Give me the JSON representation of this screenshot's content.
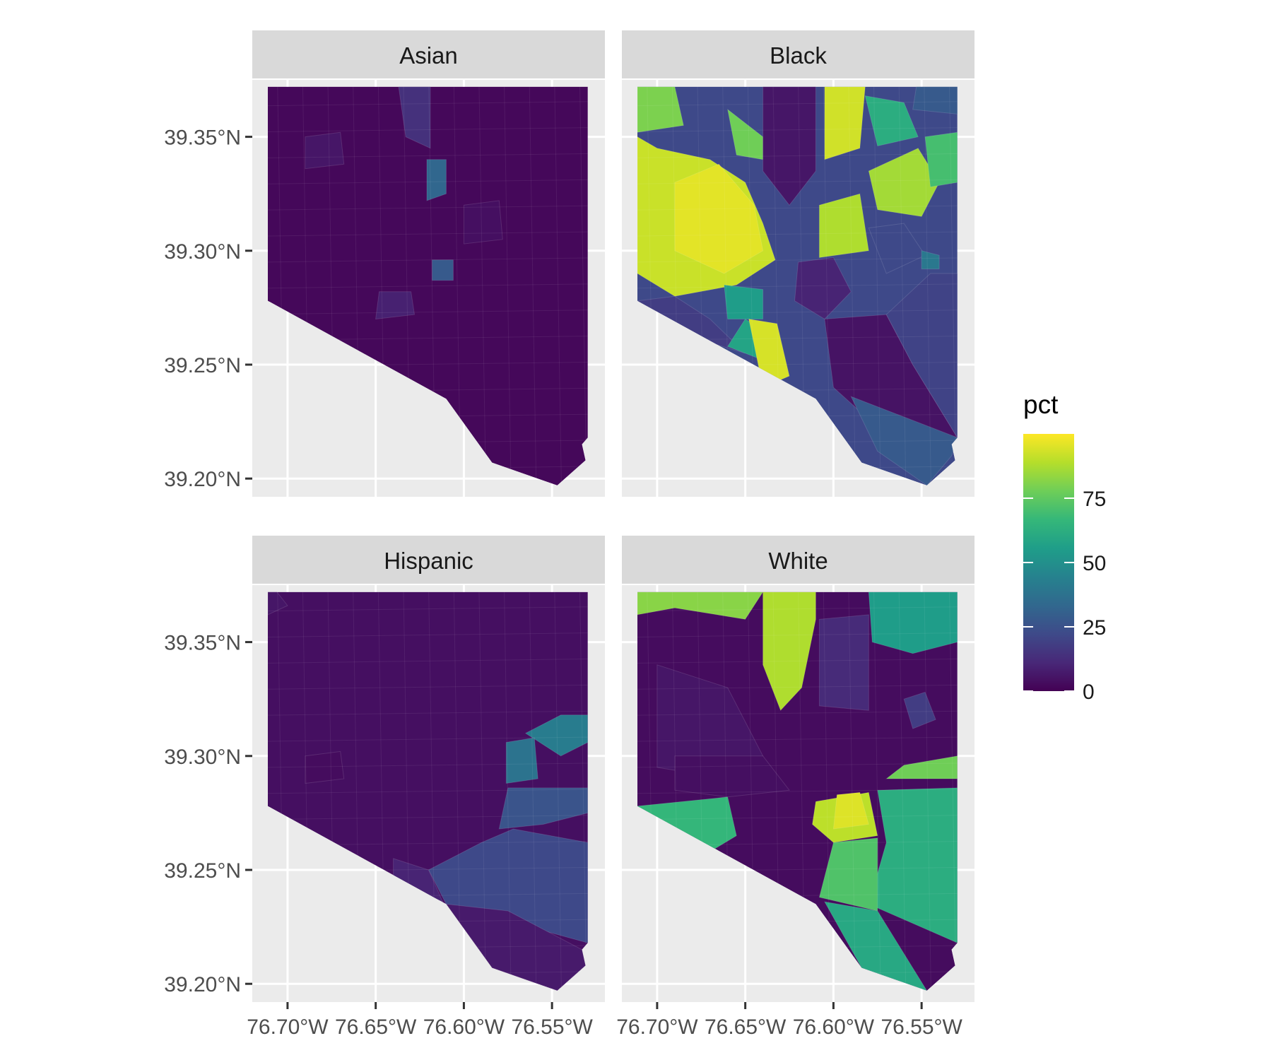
{
  "chart_data": {
    "type": "choropleth",
    "facet_variable": "",
    "panels": [
      {
        "title": "Asian",
        "regions": [
          {
            "name": "",
            "value": 2
          },
          {
            "name": "",
            "value": 14
          },
          {
            "name": "",
            "value": 33
          },
          {
            "name": "",
            "value": 28
          },
          {
            "name": "",
            "value": 9
          },
          {
            "name": "",
            "value": 6
          },
          {
            "name": "",
            "value": 4
          }
        ]
      },
      {
        "title": "Black",
        "regions": [
          {
            "name": "",
            "value": 92
          },
          {
            "name": "",
            "value": 96
          },
          {
            "name": "",
            "value": 80
          },
          {
            "name": "",
            "value": 78
          },
          {
            "name": "",
            "value": 93
          },
          {
            "name": "",
            "value": 88
          },
          {
            "name": "",
            "value": 86
          },
          {
            "name": "",
            "value": 62
          },
          {
            "name": "",
            "value": 70
          },
          {
            "name": "",
            "value": 28
          },
          {
            "name": "",
            "value": 6
          },
          {
            "name": "",
            "value": 10
          },
          {
            "name": "",
            "value": 5
          },
          {
            "name": "",
            "value": 20
          },
          {
            "name": "",
            "value": 28
          },
          {
            "name": "",
            "value": 18
          },
          {
            "name": "",
            "value": 22
          },
          {
            "name": "",
            "value": 58
          },
          {
            "name": "",
            "value": 94
          },
          {
            "name": "",
            "value": 40
          },
          {
            "name": "",
            "value": 55
          }
        ]
      },
      {
        "title": "Hispanic",
        "regions": [
          {
            "name": "",
            "value": 4
          },
          {
            "name": "",
            "value": 6
          },
          {
            "name": "",
            "value": 3
          },
          {
            "name": "",
            "value": 42
          },
          {
            "name": "",
            "value": 38
          },
          {
            "name": "",
            "value": 22
          },
          {
            "name": "",
            "value": 26
          },
          {
            "name": "",
            "value": 7
          },
          {
            "name": "",
            "value": 10
          }
        ]
      },
      {
        "title": "White",
        "regions": [
          {
            "name": "",
            "value": 3
          },
          {
            "name": "",
            "value": 82
          },
          {
            "name": "",
            "value": 88
          },
          {
            "name": "",
            "value": 6
          },
          {
            "name": "",
            "value": 12
          },
          {
            "name": "",
            "value": 55
          },
          {
            "name": "",
            "value": 78
          },
          {
            "name": "",
            "value": 62
          },
          {
            "name": "",
            "value": 90
          },
          {
            "name": "",
            "value": 95
          },
          {
            "name": "",
            "value": 72
          },
          {
            "name": "",
            "value": 60
          },
          {
            "name": "",
            "value": 4
          },
          {
            "name": "",
            "value": 66
          },
          {
            "name": "",
            "value": 18
          }
        ]
      }
    ],
    "x_ticks": [
      "76.70°W",
      "76.65°W",
      "76.60°W",
      "76.55°W"
    ],
    "x_tick_values": [
      -76.7,
      -76.65,
      -76.6,
      -76.55
    ],
    "y_ticks": [
      "39.20°N",
      "39.25°N",
      "39.30°N",
      "39.35°N"
    ],
    "y_tick_values": [
      39.2,
      39.25,
      39.3,
      39.35
    ],
    "xlim": [
      -76.72,
      -76.52
    ],
    "ylim": [
      39.192,
      39.375
    ],
    "outline": [
      [
        -76.7112,
        39.372
      ],
      [
        -76.5297,
        39.372
      ],
      [
        -76.5297,
        39.218
      ],
      [
        -76.533,
        39.215
      ],
      [
        -76.531,
        39.208
      ],
      [
        -76.547,
        39.197
      ],
      [
        -76.584,
        39.207
      ],
      [
        -76.61,
        39.235
      ],
      [
        -76.7112,
        39.278
      ]
    ],
    "legend": {
      "title": "pct",
      "ticks": [
        "0",
        "25",
        "50",
        "75"
      ],
      "tick_values": [
        0,
        25,
        50,
        75
      ],
      "range": [
        0,
        100
      ],
      "colormap": "viridis",
      "position": "right"
    },
    "grid": true,
    "colors": {
      "panel_background": "#EBEBEB",
      "strip_background": "#D9D9D9",
      "grid_line": "#FFFFFF",
      "border_line": "#2F2C49"
    }
  }
}
